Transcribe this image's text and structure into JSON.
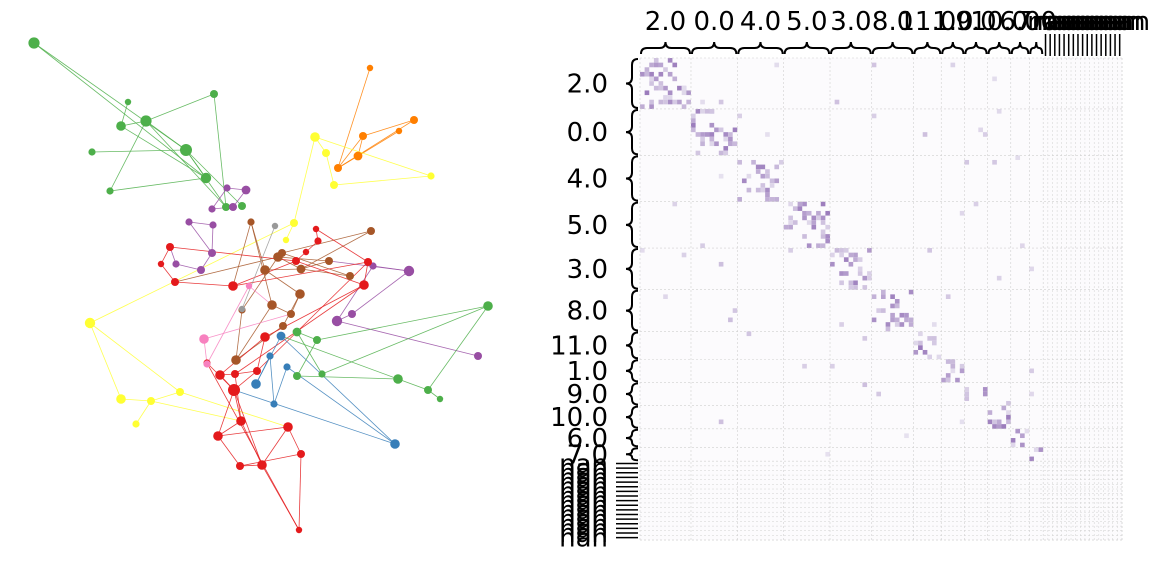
{
  "palette": {
    "green": "#4daf4a",
    "orange": "#ff7f00",
    "yellow": "#ffff33",
    "purple": "#984ea3",
    "brown": "#a65628",
    "red": "#e41a1c",
    "pink": "#f781bf",
    "blue": "#377eb8",
    "grey": "#999999",
    "matrix_dark": "#3f007d",
    "matrix_light": "#efedf5",
    "matrix_bg": "#fcfbfd",
    "grid": "#d0d0d0"
  },
  "graph": {
    "nodes": [
      {
        "id": 0,
        "c": "green",
        "s": 1.4
      },
      {
        "id": 1,
        "c": "green",
        "s": 0.8
      },
      {
        "id": 2,
        "c": "green",
        "s": 1.0
      },
      {
        "id": 3,
        "c": "green",
        "s": 1.2
      },
      {
        "id": 4,
        "c": "green",
        "s": 1.4
      },
      {
        "id": 5,
        "c": "green",
        "s": 0.9
      },
      {
        "id": 6,
        "c": "green",
        "s": 1.5
      },
      {
        "id": 7,
        "c": "green",
        "s": 0.9
      },
      {
        "id": 8,
        "c": "green",
        "s": 1.3
      },
      {
        "id": 9,
        "c": "green",
        "s": 1.0
      },
      {
        "id": 10,
        "c": "orange",
        "s": 0.8
      },
      {
        "id": 11,
        "c": "orange",
        "s": 1.0
      },
      {
        "id": 12,
        "c": "orange",
        "s": 1.0
      },
      {
        "id": 13,
        "c": "orange",
        "s": 0.8
      },
      {
        "id": 14,
        "c": "orange",
        "s": 1.0
      },
      {
        "id": 15,
        "c": "orange",
        "s": 1.1
      },
      {
        "id": 16,
        "c": "yellow",
        "s": 1.2
      },
      {
        "id": 17,
        "c": "yellow",
        "s": 1.0
      },
      {
        "id": 18,
        "c": "yellow",
        "s": 1.0
      },
      {
        "id": 19,
        "c": "yellow",
        "s": 0.9
      },
      {
        "id": 20,
        "c": "yellow",
        "s": 1.0
      },
      {
        "id": 21,
        "c": "yellow",
        "s": 0.8
      },
      {
        "id": 22,
        "c": "yellow",
        "s": 1.3
      },
      {
        "id": 23,
        "c": "yellow",
        "s": 1.2
      },
      {
        "id": 24,
        "c": "yellow",
        "s": 1.0
      },
      {
        "id": 25,
        "c": "yellow",
        "s": 0.9
      },
      {
        "id": 26,
        "c": "yellow",
        "s": 1.0
      },
      {
        "id": 27,
        "c": "purple",
        "s": 0.9
      },
      {
        "id": 28,
        "c": "purple",
        "s": 1.1
      },
      {
        "id": 29,
        "c": "purple",
        "s": 0.9
      },
      {
        "id": 30,
        "c": "purple",
        "s": 0.9
      },
      {
        "id": 31,
        "c": "purple",
        "s": 1.0
      },
      {
        "id": 32,
        "c": "purple",
        "s": 0.9
      },
      {
        "id": 33,
        "c": "purple",
        "s": 1.0
      },
      {
        "id": 34,
        "c": "purple",
        "s": 1.0
      },
      {
        "id": 35,
        "c": "purple",
        "s": 0.9
      },
      {
        "id": 36,
        "c": "purple",
        "s": 1.3
      },
      {
        "id": 37,
        "c": "purple",
        "s": 0.9
      },
      {
        "id": 38,
        "c": "purple",
        "s": 1.0
      },
      {
        "id": 39,
        "c": "purple",
        "s": 1.3
      },
      {
        "id": 40,
        "c": "purple",
        "s": 1.0
      },
      {
        "id": 41,
        "c": "brown",
        "s": 1.0
      },
      {
        "id": 42,
        "c": "brown",
        "s": 1.0
      },
      {
        "id": 43,
        "c": "brown",
        "s": 1.2
      },
      {
        "id": 44,
        "c": "brown",
        "s": 1.1
      },
      {
        "id": 45,
        "c": "brown",
        "s": 1.2
      },
      {
        "id": 46,
        "c": "brown",
        "s": 0.9
      },
      {
        "id": 47,
        "c": "brown",
        "s": 1.2
      },
      {
        "id": 48,
        "c": "brown",
        "s": 1.0
      },
      {
        "id": 49,
        "c": "brown",
        "s": 1.2
      },
      {
        "id": 50,
        "c": "brown",
        "s": 1.0
      },
      {
        "id": 51,
        "c": "brown",
        "s": 1.0
      },
      {
        "id": 52,
        "c": "brown",
        "s": 1.2
      },
      {
        "id": 53,
        "c": "brown",
        "s": 0.9
      },
      {
        "id": 54,
        "c": "brown",
        "s": 1.0
      },
      {
        "id": 55,
        "c": "red",
        "s": 1.0
      },
      {
        "id": 56,
        "c": "red",
        "s": 0.8
      },
      {
        "id": 57,
        "c": "red",
        "s": 1.0
      },
      {
        "id": 58,
        "c": "red",
        "s": 1.2
      },
      {
        "id": 59,
        "c": "red",
        "s": 1.0
      },
      {
        "id": 60,
        "c": "red",
        "s": 0.8
      },
      {
        "id": 61,
        "c": "red",
        "s": 0.9
      },
      {
        "id": 62,
        "c": "red",
        "s": 0.8
      },
      {
        "id": 63,
        "c": "red",
        "s": 1.0
      },
      {
        "id": 64,
        "c": "red",
        "s": 1.2
      },
      {
        "id": 65,
        "c": "red",
        "s": 1.2
      },
      {
        "id": 66,
        "c": "red",
        "s": 1.0
      },
      {
        "id": 67,
        "c": "red",
        "s": 1.0
      },
      {
        "id": 68,
        "c": "red",
        "s": 1.2
      },
      {
        "id": 69,
        "c": "red",
        "s": 1.5
      },
      {
        "id": 70,
        "c": "red",
        "s": 1.2
      },
      {
        "id": 71,
        "c": "red",
        "s": 1.2
      },
      {
        "id": 72,
        "c": "red",
        "s": 1.2
      },
      {
        "id": 73,
        "c": "red",
        "s": 1.2
      },
      {
        "id": 74,
        "c": "red",
        "s": 1.0
      },
      {
        "id": 75,
        "c": "red",
        "s": 1.0
      },
      {
        "id": 76,
        "c": "red",
        "s": 0.8
      },
      {
        "id": 77,
        "c": "red",
        "s": 0.9
      },
      {
        "id": 78,
        "c": "pink",
        "s": 1.2
      },
      {
        "id": 79,
        "c": "pink",
        "s": 0.9
      },
      {
        "id": 80,
        "c": "pink",
        "s": 0.8
      },
      {
        "id": 81,
        "c": "blue",
        "s": 1.1
      },
      {
        "id": 82,
        "c": "blue",
        "s": 1.2
      },
      {
        "id": 83,
        "c": "blue",
        "s": 0.9
      },
      {
        "id": 84,
        "c": "blue",
        "s": 0.9
      },
      {
        "id": 85,
        "c": "blue",
        "s": 0.9
      },
      {
        "id": 86,
        "c": "blue",
        "s": 1.2
      },
      {
        "id": 87,
        "c": "grey",
        "s": 0.8
      },
      {
        "id": 88,
        "c": "grey",
        "s": 0.8
      },
      {
        "id": 89,
        "c": "green",
        "s": 1.1
      },
      {
        "id": 90,
        "c": "green",
        "s": 1.0
      },
      {
        "id": 91,
        "c": "green",
        "s": 1.0
      },
      {
        "id": 92,
        "c": "green",
        "s": 1.2
      },
      {
        "id": 93,
        "c": "green",
        "s": 1.0
      },
      {
        "id": 94,
        "c": "green",
        "s": 0.8
      },
      {
        "id": 95,
        "c": "green",
        "s": 1.2
      },
      {
        "id": 96,
        "c": "green",
        "s": 0.9
      },
      {
        "id": 97,
        "c": "green",
        "s": 1.0
      }
    ],
    "edges": [
      {
        "a": 0,
        "b": 8,
        "c": "green"
      },
      {
        "a": 0,
        "b": 6,
        "c": "green"
      },
      {
        "a": 4,
        "b": 3,
        "c": "green"
      },
      {
        "a": 4,
        "b": 9,
        "c": "green"
      },
      {
        "a": 4,
        "b": 7,
        "c": "green"
      },
      {
        "a": 4,
        "b": 6,
        "c": "green"
      },
      {
        "a": 5,
        "b": 6,
        "c": "green"
      },
      {
        "a": 8,
        "b": 6,
        "c": "green"
      },
      {
        "a": 3,
        "b": 8,
        "c": "green"
      },
      {
        "a": 3,
        "b": 1,
        "c": "green"
      },
      {
        "a": 6,
        "b": 9,
        "c": "green"
      },
      {
        "a": 2,
        "b": 4,
        "c": "green"
      },
      {
        "a": 2,
        "b": 9,
        "c": "green"
      },
      {
        "a": 6,
        "b": 97,
        "c": "green"
      },
      {
        "a": 8,
        "b": 7,
        "c": "green"
      },
      {
        "a": 14,
        "b": 15,
        "c": "orange"
      },
      {
        "a": 14,
        "b": 12,
        "c": "orange"
      },
      {
        "a": 15,
        "b": 13,
        "c": "orange"
      },
      {
        "a": 15,
        "b": 12,
        "c": "orange"
      },
      {
        "a": 11,
        "b": 12,
        "c": "orange"
      },
      {
        "a": 11,
        "b": 14,
        "c": "orange"
      },
      {
        "a": 10,
        "b": 14,
        "c": "orange"
      },
      {
        "a": 16,
        "b": 17,
        "c": "yellow"
      },
      {
        "a": 17,
        "b": 18,
        "c": "yellow"
      },
      {
        "a": 18,
        "b": 19,
        "c": "yellow"
      },
      {
        "a": 16,
        "b": 20,
        "c": "yellow"
      },
      {
        "a": 20,
        "b": 21,
        "c": "yellow"
      },
      {
        "a": 22,
        "b": 23,
        "c": "yellow"
      },
      {
        "a": 23,
        "b": 24,
        "c": "yellow"
      },
      {
        "a": 24,
        "b": 25,
        "c": "yellow"
      },
      {
        "a": 22,
        "b": 26,
        "c": "yellow"
      },
      {
        "a": 22,
        "b": 20,
        "c": "yellow"
      },
      {
        "a": 24,
        "b": 26,
        "c": "yellow"
      },
      {
        "a": 26,
        "b": 72,
        "c": "yellow"
      },
      {
        "a": 24,
        "b": 70,
        "c": "yellow"
      },
      {
        "a": 16,
        "b": 19,
        "c": "yellow"
      },
      {
        "a": 27,
        "b": 28,
        "c": "purple"
      },
      {
        "a": 28,
        "b": 31,
        "c": "purple"
      },
      {
        "a": 29,
        "b": 27,
        "c": "purple"
      },
      {
        "a": 30,
        "b": 32,
        "c": "purple"
      },
      {
        "a": 32,
        "b": 33,
        "c": "purple"
      },
      {
        "a": 34,
        "b": 35,
        "c": "purple"
      },
      {
        "a": 34,
        "b": 33,
        "c": "purple"
      },
      {
        "a": 36,
        "b": 37,
        "c": "purple"
      },
      {
        "a": 36,
        "b": 38,
        "c": "purple"
      },
      {
        "a": 39,
        "b": 40,
        "c": "purple"
      },
      {
        "a": 38,
        "b": 39,
        "c": "purple"
      },
      {
        "a": 37,
        "b": 39,
        "c": "purple"
      },
      {
        "a": 36,
        "b": 50,
        "c": "purple"
      },
      {
        "a": 29,
        "b": 31,
        "c": "purple"
      },
      {
        "a": 35,
        "b": 55,
        "c": "purple"
      },
      {
        "a": 33,
        "b": 30,
        "c": "purple"
      },
      {
        "a": 41,
        "b": 42,
        "c": "brown"
      },
      {
        "a": 42,
        "b": 43,
        "c": "brown"
      },
      {
        "a": 43,
        "b": 44,
        "c": "brown"
      },
      {
        "a": 44,
        "b": 45,
        "c": "brown"
      },
      {
        "a": 45,
        "b": 46,
        "c": "brown"
      },
      {
        "a": 46,
        "b": 47,
        "c": "brown"
      },
      {
        "a": 47,
        "b": 48,
        "c": "brown"
      },
      {
        "a": 48,
        "b": 49,
        "c": "brown"
      },
      {
        "a": 49,
        "b": 51,
        "c": "brown"
      },
      {
        "a": 51,
        "b": 52,
        "c": "brown"
      },
      {
        "a": 52,
        "b": 53,
        "c": "brown"
      },
      {
        "a": 53,
        "b": 43,
        "c": "brown"
      },
      {
        "a": 54,
        "b": 42,
        "c": "brown"
      },
      {
        "a": 50,
        "b": 43,
        "c": "brown"
      },
      {
        "a": 50,
        "b": 44,
        "c": "brown"
      },
      {
        "a": 41,
        "b": 44,
        "c": "brown"
      },
      {
        "a": 43,
        "b": 57,
        "c": "brown"
      },
      {
        "a": 45,
        "b": 49,
        "c": "brown"
      },
      {
        "a": 47,
        "b": 52,
        "c": "brown"
      },
      {
        "a": 46,
        "b": 58,
        "c": "brown"
      },
      {
        "a": 44,
        "b": 54,
        "c": "brown"
      },
      {
        "a": 55,
        "b": 56,
        "c": "red"
      },
      {
        "a": 56,
        "b": 57,
        "c": "red"
      },
      {
        "a": 57,
        "b": 58,
        "c": "red"
      },
      {
        "a": 58,
        "b": 59,
        "c": "red"
      },
      {
        "a": 59,
        "b": 60,
        "c": "red"
      },
      {
        "a": 60,
        "b": 61,
        "c": "red"
      },
      {
        "a": 61,
        "b": 62,
        "c": "red"
      },
      {
        "a": 62,
        "b": 63,
        "c": "red"
      },
      {
        "a": 63,
        "b": 64,
        "c": "red"
      },
      {
        "a": 64,
        "b": 65,
        "c": "red"
      },
      {
        "a": 65,
        "b": 66,
        "c": "red"
      },
      {
        "a": 66,
        "b": 67,
        "c": "red"
      },
      {
        "a": 67,
        "b": 68,
        "c": "red"
      },
      {
        "a": 68,
        "b": 69,
        "c": "red"
      },
      {
        "a": 69,
        "b": 70,
        "c": "red"
      },
      {
        "a": 70,
        "b": 71,
        "c": "red"
      },
      {
        "a": 71,
        "b": 72,
        "c": "red"
      },
      {
        "a": 72,
        "b": 73,
        "c": "red"
      },
      {
        "a": 73,
        "b": 74,
        "c": "red"
      },
      {
        "a": 74,
        "b": 75,
        "c": "red"
      },
      {
        "a": 75,
        "b": 76,
        "c": "red"
      },
      {
        "a": 76,
        "b": 77,
        "c": "red"
      },
      {
        "a": 69,
        "b": 71,
        "c": "red"
      },
      {
        "a": 69,
        "b": 73,
        "c": "red"
      },
      {
        "a": 70,
        "b": 73,
        "c": "red"
      },
      {
        "a": 65,
        "b": 68,
        "c": "red"
      },
      {
        "a": 66,
        "b": 69,
        "c": "red"
      },
      {
        "a": 67,
        "b": 70,
        "c": "red"
      },
      {
        "a": 71,
        "b": 74,
        "c": "red"
      },
      {
        "a": 72,
        "b": 75,
        "c": "red"
      },
      {
        "a": 64,
        "b": 67,
        "c": "red"
      },
      {
        "a": 63,
        "b": 66,
        "c": "red"
      },
      {
        "a": 73,
        "b": 76,
        "c": "red"
      },
      {
        "a": 58,
        "b": 63,
        "c": "red"
      },
      {
        "a": 59,
        "b": 64,
        "c": "red"
      },
      {
        "a": 55,
        "b": 59,
        "c": "red"
      },
      {
        "a": 77,
        "b": 69,
        "c": "red"
      },
      {
        "a": 78,
        "b": 79,
        "c": "pink"
      },
      {
        "a": 79,
        "b": 80,
        "c": "pink"
      },
      {
        "a": 80,
        "b": 47,
        "c": "pink"
      },
      {
        "a": 78,
        "b": 48,
        "c": "pink"
      },
      {
        "a": 81,
        "b": 82,
        "c": "blue"
      },
      {
        "a": 82,
        "b": 83,
        "c": "blue"
      },
      {
        "a": 83,
        "b": 84,
        "c": "blue"
      },
      {
        "a": 84,
        "b": 85,
        "c": "blue"
      },
      {
        "a": 85,
        "b": 86,
        "c": "blue"
      },
      {
        "a": 81,
        "b": 86,
        "c": "blue"
      },
      {
        "a": 86,
        "b": 69,
        "c": "blue"
      },
      {
        "a": 87,
        "b": 88,
        "c": "grey"
      },
      {
        "a": 89,
        "b": 90,
        "c": "green"
      },
      {
        "a": 90,
        "b": 91,
        "c": "green"
      },
      {
        "a": 91,
        "b": 92,
        "c": "green"
      },
      {
        "a": 92,
        "b": 93,
        "c": "green"
      },
      {
        "a": 93,
        "b": 94,
        "c": "green"
      },
      {
        "a": 95,
        "b": 96,
        "c": "green"
      },
      {
        "a": 96,
        "b": 89,
        "c": "green"
      },
      {
        "a": 95,
        "b": 90,
        "c": "green"
      },
      {
        "a": 92,
        "b": 81,
        "c": "green"
      },
      {
        "a": 95,
        "b": 93,
        "c": "green"
      }
    ]
  },
  "matrix": {
    "top_labels": [
      "2.0",
      "0.0",
      "4.0",
      "5.0",
      "3.0",
      "8.0",
      "11.0",
      "1.0",
      "9.0",
      "10.0",
      "6.0",
      "7.0",
      "nan"
    ],
    "left_labels": [
      "2.0",
      "0.0",
      "4.0",
      "5.0",
      "3.0",
      "8.0",
      "11.0",
      "1.0",
      "9.0",
      "10.0",
      "6.0",
      "7.0",
      "nan"
    ],
    "group_sizes": [
      11,
      10,
      10,
      10,
      9,
      9,
      6,
      5,
      5,
      5,
      4,
      3,
      17
    ],
    "nan_repeat": 17
  }
}
